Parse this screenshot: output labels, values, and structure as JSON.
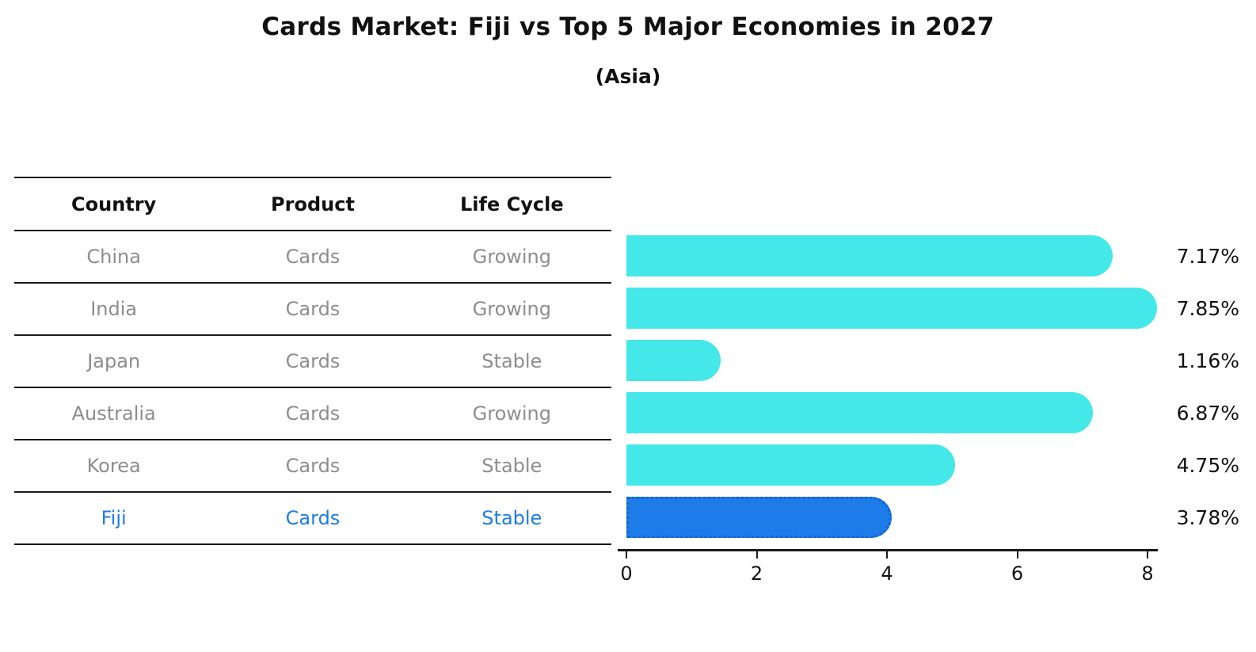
{
  "header": {
    "title": "Cards Market: Fiji vs Top 5 Major Economies in 2027",
    "subtitle": "(Asia)"
  },
  "table": {
    "headers": [
      "Country",
      "Product",
      "Life Cycle"
    ],
    "rows": [
      {
        "country": "China",
        "product": "Cards",
        "life_cycle": "Growing",
        "highlighted": false
      },
      {
        "country": "India",
        "product": "Cards",
        "life_cycle": "Growing",
        "highlighted": false
      },
      {
        "country": "Japan",
        "product": "Cards",
        "life_cycle": "Stable",
        "highlighted": false
      },
      {
        "country": "Australia",
        "product": "Cards",
        "life_cycle": "Growing",
        "highlighted": false
      },
      {
        "country": "Korea",
        "product": "Cards",
        "life_cycle": "Stable",
        "highlighted": false
      },
      {
        "country": "Fiji",
        "product": "Cards",
        "life_cycle": "Stable",
        "highlighted": true
      }
    ]
  },
  "chart_data": {
    "type": "bar",
    "orientation": "horizontal",
    "title": "Cards Market: Fiji vs Top 5 Major Economies in 2027",
    "subtitle": "(Asia)",
    "categories": [
      "China",
      "India",
      "Japan",
      "Australia",
      "Korea",
      "Fiji"
    ],
    "values": [
      7.17,
      7.85,
      1.16,
      6.87,
      4.75,
      3.78
    ],
    "value_labels": [
      "7.17%",
      "7.85%",
      "1.16%",
      "6.87%",
      "4.75%",
      "3.78%"
    ],
    "xticks": [
      0,
      2,
      4,
      6,
      8
    ],
    "xlim": [
      0,
      8
    ],
    "grid": false,
    "legend": false,
    "highlighted_category": "Fiji",
    "bar_color": "#45e8e8",
    "highlight_color": "#1e7ce8",
    "highlight_border_color": "#1563cf"
  },
  "colors": {
    "text_dark": "#111111",
    "text_muted": "#8d8d8d",
    "highlight_text": "#1e7ce8",
    "line": "#1a1a1a"
  }
}
